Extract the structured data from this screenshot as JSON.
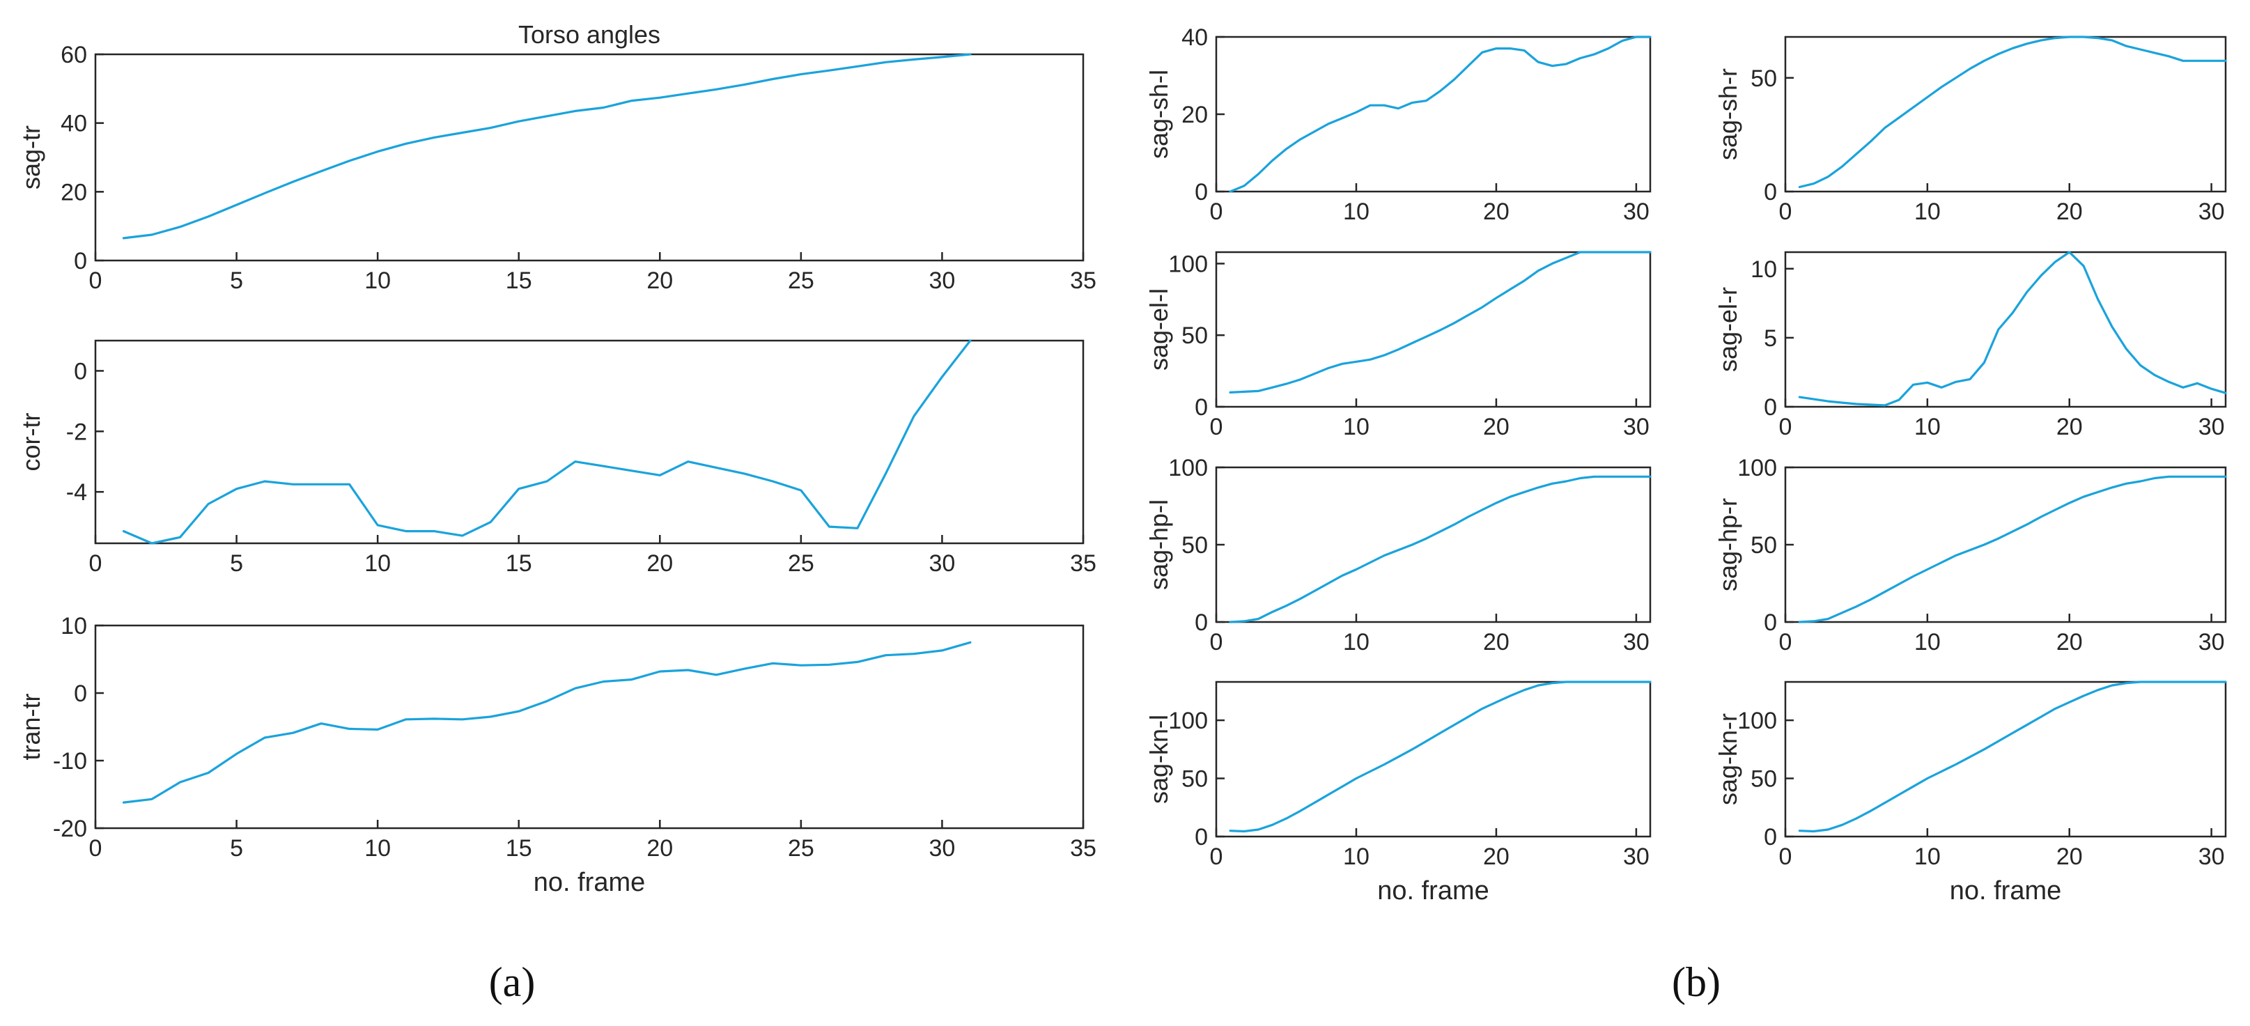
{
  "figure": {
    "panel_a_label": "(a)",
    "panel_b_label": "(b)",
    "line_color": "#1aa3dc"
  },
  "chart_data": [
    {
      "type": "line",
      "title": "Torso angles",
      "xlabel": "",
      "ylabel": "sag-tr",
      "xlim": [
        0,
        35
      ],
      "ylim": [
        0,
        60
      ],
      "xticks": [
        0,
        5,
        10,
        15,
        20,
        25,
        30,
        35
      ],
      "yticks": [
        0,
        20,
        40,
        60
      ],
      "x": [
        1,
        2,
        3,
        4,
        5,
        6,
        7,
        8,
        9,
        10,
        11,
        12,
        13,
        14,
        15,
        16,
        17,
        18,
        19,
        20,
        21,
        22,
        23,
        24,
        25,
        26,
        27,
        28,
        29,
        30,
        31
      ],
      "values": [
        6.5,
        7.5,
        9.8,
        12.8,
        16.2,
        19.6,
        22.9,
        26.0,
        29.0,
        31.7,
        34.0,
        35.8,
        37.2,
        38.6,
        40.5,
        42.0,
        43.5,
        44.5,
        46.5,
        47.4,
        48.6,
        49.8,
        51.2,
        52.8,
        54.2,
        55.3,
        56.5,
        57.7,
        58.5,
        59.2,
        60.0
      ],
      "grid": false
    },
    {
      "type": "line",
      "title": "",
      "xlabel": "",
      "ylabel": "cor-tr",
      "xlim": [
        0,
        35
      ],
      "ylim": [
        -5.7,
        1.0
      ],
      "xticks": [
        0,
        5,
        10,
        15,
        20,
        25,
        30,
        35
      ],
      "yticks": [
        -4,
        -2,
        0
      ],
      "x": [
        1,
        2,
        3,
        4,
        5,
        6,
        7,
        8,
        9,
        10,
        11,
        12,
        13,
        14,
        15,
        16,
        17,
        18,
        19,
        20,
        21,
        22,
        23,
        24,
        25,
        26,
        27,
        28,
        29,
        30,
        31
      ],
      "values": [
        -5.3,
        -5.7,
        -5.5,
        -4.4,
        -3.9,
        -3.65,
        -3.75,
        -3.75,
        -3.75,
        -5.1,
        -5.3,
        -5.3,
        -5.45,
        -5.0,
        -3.9,
        -3.65,
        -3.0,
        -3.15,
        -3.3,
        -3.45,
        -3.0,
        -3.2,
        -3.4,
        -3.65,
        -3.95,
        -5.15,
        -5.2,
        -3.4,
        -1.5,
        -0.2,
        1.0
      ],
      "grid": false
    },
    {
      "type": "line",
      "title": "",
      "xlabel": "no. frame",
      "ylabel": "tran-tr",
      "xlim": [
        0,
        35
      ],
      "ylim": [
        -20,
        10
      ],
      "xticks": [
        0,
        5,
        10,
        15,
        20,
        25,
        30,
        35
      ],
      "yticks": [
        -20,
        -10,
        0,
        10
      ],
      "x": [
        1,
        2,
        3,
        4,
        5,
        6,
        7,
        8,
        9,
        10,
        11,
        12,
        13,
        14,
        15,
        16,
        17,
        18,
        19,
        20,
        21,
        22,
        23,
        24,
        25,
        26,
        27,
        28,
        29,
        30,
        31
      ],
      "values": [
        -16.2,
        -15.7,
        -13.2,
        -11.8,
        -9.0,
        -6.6,
        -5.9,
        -4.5,
        -5.3,
        -5.4,
        -3.9,
        -3.8,
        -3.9,
        -3.5,
        -2.7,
        -1.2,
        0.7,
        1.7,
        2.0,
        3.2,
        3.4,
        2.7,
        3.6,
        4.4,
        4.1,
        4.2,
        4.6,
        5.6,
        5.8,
        6.3,
        7.5
      ],
      "grid": false
    },
    {
      "type": "line",
      "title": "",
      "xlabel": "",
      "ylabel": "sag-sh-l",
      "xlim": [
        0,
        31
      ],
      "ylim": [
        0,
        40
      ],
      "xticks": [
        0,
        10,
        20,
        30
      ],
      "yticks": [
        0,
        20,
        40
      ],
      "x": [
        1,
        2,
        3,
        4,
        5,
        6,
        7,
        8,
        9,
        10,
        11,
        12,
        13,
        14,
        15,
        16,
        17,
        18,
        19,
        20,
        21,
        22,
        23,
        24,
        25,
        26,
        27,
        28,
        29,
        30,
        31
      ],
      "values": [
        0,
        1.5,
        4.5,
        8.0,
        11.0,
        13.5,
        15.5,
        17.5,
        19.0,
        20.5,
        22.3,
        22.3,
        21.5,
        23.0,
        23.5,
        26.0,
        29.0,
        32.5,
        36.0,
        37.0,
        37.0,
        36.5,
        33.5,
        32.5,
        33.0,
        34.5,
        35.5,
        37.0,
        39.0,
        40.0,
        40.0
      ],
      "grid": false
    },
    {
      "type": "line",
      "title": "",
      "xlabel": "",
      "ylabel": "sag-sh-r",
      "xlim": [
        0,
        31
      ],
      "ylim": [
        0,
        68
      ],
      "xticks": [
        0,
        10,
        20,
        30
      ],
      "yticks": [
        0,
        50
      ],
      "x": [
        1,
        2,
        3,
        4,
        5,
        6,
        7,
        8,
        9,
        10,
        11,
        12,
        13,
        14,
        15,
        16,
        17,
        18,
        19,
        20,
        21,
        22,
        23,
        24,
        25,
        26,
        27,
        28,
        29,
        30,
        31
      ],
      "values": [
        2,
        3.5,
        6.5,
        11,
        16.5,
        22,
        28,
        32.5,
        37,
        41.5,
        46,
        50,
        54,
        57.5,
        60.5,
        63,
        65,
        66.5,
        67.5,
        68,
        68,
        67.5,
        66.5,
        64,
        62.5,
        61,
        59.5,
        57.5,
        57.5,
        57.5,
        57.5
      ],
      "grid": false
    },
    {
      "type": "line",
      "title": "",
      "xlabel": "",
      "ylabel": "sag-el-l",
      "xlim": [
        0,
        31
      ],
      "ylim": [
        0,
        108
      ],
      "xticks": [
        0,
        10,
        20,
        30
      ],
      "yticks": [
        0,
        50,
        100
      ],
      "x": [
        1,
        2,
        3,
        4,
        5,
        6,
        7,
        8,
        9,
        10,
        11,
        12,
        13,
        14,
        15,
        16,
        17,
        18,
        19,
        20,
        21,
        22,
        23,
        24,
        25,
        26,
        27,
        28,
        29,
        30,
        31
      ],
      "values": [
        10,
        10.5,
        11,
        13.5,
        16,
        19,
        23,
        27,
        30,
        31.5,
        33,
        36,
        40,
        44.5,
        49,
        53.5,
        58.5,
        64,
        69.5,
        76,
        82,
        88,
        95,
        100,
        104,
        108,
        108,
        108,
        108,
        108,
        108
      ],
      "grid": false
    },
    {
      "type": "line",
      "title": "",
      "xlabel": "",
      "ylabel": "sag-el-r",
      "xlim": [
        0,
        31
      ],
      "ylim": [
        0,
        11.2
      ],
      "xticks": [
        0,
        10,
        20,
        30
      ],
      "yticks": [
        0,
        5,
        10
      ],
      "x": [
        1,
        2,
        3,
        4,
        5,
        6,
        7,
        8,
        9,
        10,
        11,
        12,
        13,
        14,
        15,
        16,
        17,
        18,
        19,
        20,
        21,
        22,
        23,
        24,
        25,
        26,
        27,
        28,
        29,
        30,
        31
      ],
      "values": [
        0.7,
        0.55,
        0.4,
        0.3,
        0.2,
        0.15,
        0.1,
        0.5,
        1.6,
        1.75,
        1.4,
        1.8,
        2.0,
        3.2,
        5.6,
        6.8,
        8.3,
        9.5,
        10.5,
        11.2,
        10.2,
        7.8,
        5.8,
        4.2,
        3.0,
        2.3,
        1.8,
        1.4,
        1.7,
        1.3,
        1.0
      ],
      "grid": false
    },
    {
      "type": "line",
      "title": "",
      "xlabel": "",
      "ylabel": "sag-hp-l",
      "xlim": [
        0,
        31
      ],
      "ylim": [
        0,
        100
      ],
      "xticks": [
        0,
        10,
        20,
        30
      ],
      "yticks": [
        0,
        50,
        100
      ],
      "x": [
        1,
        2,
        3,
        4,
        5,
        6,
        7,
        8,
        9,
        10,
        11,
        12,
        13,
        14,
        15,
        16,
        17,
        18,
        19,
        20,
        21,
        22,
        23,
        24,
        25,
        26,
        27,
        28,
        29,
        30,
        31
      ],
      "values": [
        0,
        0.5,
        2,
        6.5,
        10.5,
        15,
        20,
        25,
        30,
        34,
        38.5,
        43,
        46.5,
        50,
        54,
        58.5,
        63,
        68,
        72.5,
        77,
        81,
        84,
        87,
        89.5,
        91,
        93,
        94,
        94,
        94,
        94,
        94
      ],
      "grid": false
    },
    {
      "type": "line",
      "title": "",
      "xlabel": "",
      "ylabel": "sag-hp-r",
      "xlim": [
        0,
        31
      ],
      "ylim": [
        0,
        100
      ],
      "xticks": [
        0,
        10,
        20,
        30
      ],
      "yticks": [
        0,
        50,
        100
      ],
      "x": [
        1,
        2,
        3,
        4,
        5,
        6,
        7,
        8,
        9,
        10,
        11,
        12,
        13,
        14,
        15,
        16,
        17,
        18,
        19,
        20,
        21,
        22,
        23,
        24,
        25,
        26,
        27,
        28,
        29,
        30,
        31
      ],
      "values": [
        0,
        0.5,
        2,
        6,
        10,
        14.5,
        19.5,
        24.5,
        29.5,
        34,
        38.5,
        43,
        46.5,
        50,
        54,
        58.5,
        63,
        68,
        72.5,
        77,
        81,
        84,
        87,
        89.5,
        91,
        93,
        94,
        94,
        94,
        94,
        94
      ],
      "grid": false
    },
    {
      "type": "line",
      "title": "",
      "xlabel": "no. frame",
      "ylabel": "sag-kn-l",
      "xlim": [
        0,
        31
      ],
      "ylim": [
        0,
        133
      ],
      "xticks": [
        0,
        10,
        20,
        30
      ],
      "yticks": [
        0,
        50,
        100
      ],
      "x": [
        1,
        2,
        3,
        4,
        5,
        6,
        7,
        8,
        9,
        10,
        11,
        12,
        13,
        14,
        15,
        16,
        17,
        18,
        19,
        20,
        21,
        22,
        23,
        24,
        25,
        26,
        27,
        28,
        29,
        30,
        31
      ],
      "values": [
        5,
        4.5,
        6,
        10,
        15.5,
        22,
        29,
        36,
        43,
        50,
        56,
        62,
        68.5,
        75,
        82,
        89,
        96,
        103,
        110,
        115.5,
        121,
        126,
        130,
        132,
        133,
        133,
        133,
        133,
        133,
        133,
        133
      ],
      "grid": false
    },
    {
      "type": "line",
      "title": "",
      "xlabel": "no. frame",
      "ylabel": "sag-kn-r",
      "xlim": [
        0,
        31
      ],
      "ylim": [
        0,
        133
      ],
      "xticks": [
        0,
        10,
        20,
        30
      ],
      "yticks": [
        0,
        50,
        100
      ],
      "x": [
        1,
        2,
        3,
        4,
        5,
        6,
        7,
        8,
        9,
        10,
        11,
        12,
        13,
        14,
        15,
        16,
        17,
        18,
        19,
        20,
        21,
        22,
        23,
        24,
        25,
        26,
        27,
        28,
        29,
        30,
        31
      ],
      "values": [
        5,
        4.5,
        6,
        10,
        15.5,
        22,
        29,
        36,
        43,
        50,
        56,
        62,
        68.5,
        75,
        82,
        89,
        96,
        103,
        110,
        115.5,
        121,
        126,
        130,
        132,
        133,
        133,
        133,
        133,
        133,
        133,
        133
      ],
      "grid": false
    }
  ]
}
